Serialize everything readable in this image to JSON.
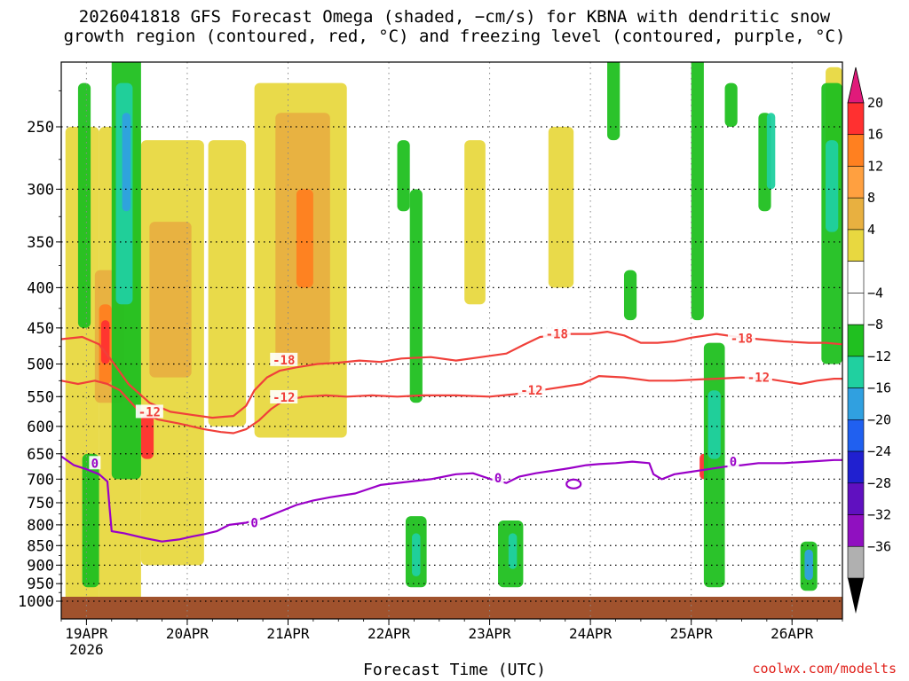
{
  "title_line1": "2026041818 GFS Forecast Omega (shaded, −cm/s) for KBNA with dendritic snow",
  "title_line2": "growth region (contoured, red, °C) and freezing level (contoured, purple, °C)",
  "credit": "coolwx.com/modelts",
  "colors": {
    "isotherm_red": "#f0403a",
    "freezing_purple": "#9a00c8",
    "ground": "#a0522d"
  },
  "chart_data": {
    "type": "heatmap",
    "xlabel": "Forecast Time (UTC)",
    "x_ticks": [
      "19APR",
      "20APR",
      "21APR",
      "22APR",
      "23APR",
      "24APR",
      "25APR",
      "26APR"
    ],
    "x_year_label": "2026",
    "x_range_hours": [
      -6,
      180
    ],
    "y_pressure_levels": [
      "250",
      "300",
      "350",
      "400",
      "450",
      "500",
      "550",
      "600",
      "650",
      "700",
      "750",
      "800",
      "850",
      "900",
      "950",
      "1000"
    ],
    "y_range_hPa": [
      200,
      1000
    ],
    "grid": true,
    "colorbar": {
      "labels": [
        "20",
        "16",
        "12",
        "8",
        "4",
        "−4",
        "−8",
        "−12",
        "−16",
        "−20",
        "−24",
        "−28",
        "−32",
        "−36"
      ],
      "colors": [
        "#ff3030",
        "#ff8020",
        "#ffa040",
        "#e8b040",
        "#e8d840",
        "#ffffff",
        "#ffffff",
        "#20c020",
        "#20d0a0",
        "#30a0e0",
        "#2060f0",
        "#2020d0",
        "#6010c0",
        "#9010c0",
        "#b0b0b0"
      ],
      "top_arrow_color": "#e01a7a",
      "bottom_arrow_color": "#000000"
    },
    "contours": [
      {
        "label": "-18",
        "color": "#f0403a",
        "points": [
          [
            -6,
            465
          ],
          [
            -1,
            462
          ],
          [
            3,
            472
          ],
          [
            6,
            495
          ],
          [
            10,
            530
          ],
          [
            15,
            560
          ],
          [
            20,
            575
          ],
          [
            25,
            580
          ],
          [
            30,
            585
          ],
          [
            35,
            582
          ],
          [
            38,
            565
          ],
          [
            40,
            540
          ],
          [
            43,
            520
          ],
          [
            46,
            510
          ],
          [
            50,
            505
          ],
          [
            55,
            500
          ],
          [
            60,
            498
          ],
          [
            65,
            495
          ],
          [
            70,
            497
          ],
          [
            75,
            492
          ],
          [
            82,
            490
          ],
          [
            88,
            495
          ],
          [
            94,
            490
          ],
          [
            100,
            485
          ],
          [
            104,
            473
          ],
          [
            108,
            462
          ],
          [
            115,
            458
          ],
          [
            120,
            458
          ],
          [
            124,
            455
          ],
          [
            128,
            460
          ],
          [
            132,
            470
          ],
          [
            136,
            470
          ],
          [
            140,
            468
          ],
          [
            144,
            463
          ],
          [
            150,
            458
          ],
          [
            155,
            462
          ],
          [
            160,
            465
          ],
          [
            166,
            468
          ],
          [
            172,
            470
          ],
          [
            176,
            470
          ],
          [
            180,
            472
          ]
        ],
        "label_positions": [
          [
            47,
            494
          ],
          [
            112,
            458
          ],
          [
            156,
            464
          ]
        ]
      },
      {
        "label": "-12",
        "color": "#f0403a",
        "points": [
          [
            -6,
            525
          ],
          [
            -2,
            530
          ],
          [
            2,
            525
          ],
          [
            5,
            530
          ],
          [
            8,
            540
          ],
          [
            12,
            570
          ],
          [
            17,
            588
          ],
          [
            22,
            595
          ],
          [
            28,
            605
          ],
          [
            32,
            610
          ],
          [
            35,
            612
          ],
          [
            38,
            605
          ],
          [
            41,
            590
          ],
          [
            44,
            570
          ],
          [
            47,
            556
          ],
          [
            52,
            550
          ],
          [
            57,
            548
          ],
          [
            62,
            550
          ],
          [
            68,
            548
          ],
          [
            74,
            550
          ],
          [
            80,
            548
          ],
          [
            88,
            548
          ],
          [
            96,
            550
          ],
          [
            102,
            546
          ],
          [
            108,
            540
          ],
          [
            114,
            534
          ],
          [
            118,
            530
          ],
          [
            122,
            518
          ],
          [
            128,
            520
          ],
          [
            134,
            525
          ],
          [
            140,
            525
          ],
          [
            146,
            523
          ],
          [
            150,
            522
          ],
          [
            156,
            520
          ],
          [
            162,
            522
          ],
          [
            170,
            530
          ],
          [
            174,
            525
          ],
          [
            178,
            522
          ],
          [
            180,
            522
          ]
        ],
        "label_positions": [
          [
            15,
            575
          ],
          [
            47,
            551
          ],
          [
            106,
            540
          ],
          [
            160,
            520
          ]
        ]
      },
      {
        "label": "0",
        "color": "#9a00c8",
        "points": [
          [
            -6,
            655
          ],
          [
            -3,
            672
          ],
          [
            0,
            680
          ],
          [
            3,
            690
          ],
          [
            5,
            705
          ],
          [
            5.5,
            760
          ],
          [
            6,
            815
          ],
          [
            9,
            820
          ],
          [
            14,
            832
          ],
          [
            18,
            840
          ],
          [
            22,
            835
          ],
          [
            25,
            828
          ],
          [
            28,
            822
          ],
          [
            31,
            815
          ],
          [
            34,
            800
          ],
          [
            38,
            795
          ],
          [
            42,
            785
          ],
          [
            46,
            770
          ],
          [
            50,
            755
          ],
          [
            54,
            745
          ],
          [
            58,
            738
          ],
          [
            64,
            730
          ],
          [
            70,
            712
          ],
          [
            76,
            706
          ],
          [
            82,
            700
          ],
          [
            88,
            690
          ],
          [
            92,
            688
          ],
          [
            97,
            702
          ],
          [
            100,
            708
          ],
          [
            103,
            695
          ],
          [
            107,
            688
          ],
          [
            111,
            683
          ],
          [
            115,
            678
          ],
          [
            119,
            672
          ],
          [
            122,
            670
          ],
          [
            126,
            668
          ],
          [
            130,
            665
          ],
          [
            134,
            668
          ],
          [
            135,
            690
          ],
          [
            137,
            700
          ],
          [
            140,
            690
          ],
          [
            144,
            685
          ],
          [
            148,
            680
          ],
          [
            152,
            675
          ],
          [
            156,
            672
          ],
          [
            160,
            668
          ],
          [
            166,
            668
          ],
          [
            172,
            665
          ],
          [
            178,
            662
          ],
          [
            180,
            662
          ]
        ],
        "label_positions": [
          [
            2,
            668
          ],
          [
            40,
            795
          ],
          [
            98,
            698
          ],
          [
            154,
            665
          ]
        ]
      }
    ],
    "omega_regions": [
      {
        "t0": -5,
        "t1": 3,
        "p0": 250,
        "p1": 1000,
        "color": "#e8d840"
      },
      {
        "t0": 3,
        "t1": 13,
        "p0": 250,
        "p1": 1000,
        "color": "#e8d840"
      },
      {
        "t0": 13,
        "t1": 28,
        "p0": 260,
        "p1": 900,
        "color": "#e8d840"
      },
      {
        "t0": 29,
        "t1": 38,
        "p0": 260,
        "p1": 600,
        "color": "#e8d840"
      },
      {
        "t0": 40,
        "t1": 62,
        "p0": 220,
        "p1": 620,
        "color": "#e8d840"
      },
      {
        "t0": 90,
        "t1": 95,
        "p0": 260,
        "p1": 420,
        "color": "#e8d840"
      },
      {
        "t0": 110,
        "t1": 116,
        "p0": 250,
        "p1": 400,
        "color": "#e8d840"
      },
      {
        "t0": 176,
        "t1": 180,
        "p0": 210,
        "p1": 300,
        "color": "#e8d840"
      },
      {
        "t0": 2,
        "t1": 9,
        "p0": 380,
        "p1": 560,
        "color": "#e8b040"
      },
      {
        "t0": 15,
        "t1": 25,
        "p0": 330,
        "p1": 520,
        "color": "#e8b040"
      },
      {
        "t0": 45,
        "t1": 58,
        "p0": 240,
        "p1": 500,
        "color": "#e8b040"
      },
      {
        "t0": 3,
        "t1": 6,
        "p0": 420,
        "p1": 530,
        "color": "#ff8020"
      },
      {
        "t0": 50,
        "t1": 54,
        "p0": 300,
        "p1": 400,
        "color": "#ff8020"
      },
      {
        "t0": 3.5,
        "t1": 5.5,
        "p0": 440,
        "p1": 500,
        "color": "#ff3030"
      },
      {
        "t0": 13,
        "t1": 16,
        "p0": 580,
        "p1": 660,
        "color": "#ff3030"
      },
      {
        "t0": 146,
        "t1": 148,
        "p0": 650,
        "p1": 700,
        "color": "#ff3030"
      },
      {
        "t0": -2,
        "t1": 1,
        "p0": 220,
        "p1": 450,
        "color": "#20c020"
      },
      {
        "t0": 6,
        "t1": 13,
        "p0": 200,
        "p1": 700,
        "color": "#20c020"
      },
      {
        "t0": 7,
        "t1": 11,
        "p0": 220,
        "p1": 420,
        "color": "#20d0a0"
      },
      {
        "t0": 8.5,
        "t1": 10.5,
        "p0": 240,
        "p1": 320,
        "color": "#30a0e0"
      },
      {
        "t0": -1,
        "t1": 3,
        "p0": 650,
        "p1": 960,
        "color": "#20c020"
      },
      {
        "t0": 74,
        "t1": 77,
        "p0": 260,
        "p1": 320,
        "color": "#20c020"
      },
      {
        "t0": 77,
        "t1": 80,
        "p0": 300,
        "p1": 560,
        "color": "#20c020"
      },
      {
        "t0": 76,
        "t1": 81,
        "p0": 780,
        "p1": 960,
        "color": "#20c020"
      },
      {
        "t0": 77.5,
        "t1": 79.5,
        "p0": 820,
        "p1": 930,
        "color": "#20d0a0"
      },
      {
        "t0": 98,
        "t1": 104,
        "p0": 790,
        "p1": 960,
        "color": "#20c020"
      },
      {
        "t0": 100.5,
        "t1": 102.5,
        "p0": 820,
        "p1": 910,
        "color": "#20d0a0"
      },
      {
        "t0": 124,
        "t1": 127,
        "p0": 200,
        "p1": 260,
        "color": "#20c020"
      },
      {
        "t0": 128,
        "t1": 131,
        "p0": 380,
        "p1": 440,
        "color": "#20c020"
      },
      {
        "t0": 144,
        "t1": 147,
        "p0": 200,
        "p1": 440,
        "color": "#20c020"
      },
      {
        "t0": 147,
        "t1": 152,
        "p0": 470,
        "p1": 960,
        "color": "#20c020"
      },
      {
        "t0": 148,
        "t1": 151,
        "p0": 540,
        "p1": 660,
        "color": "#20d0a0"
      },
      {
        "t0": 152,
        "t1": 155,
        "p0": 220,
        "p1": 250,
        "color": "#20c020"
      },
      {
        "t0": 160,
        "t1": 163,
        "p0": 240,
        "p1": 320,
        "color": "#20c020"
      },
      {
        "t0": 162,
        "t1": 164,
        "p0": 240,
        "p1": 300,
        "color": "#20d0a0"
      },
      {
        "t0": 170,
        "t1": 174,
        "p0": 840,
        "p1": 970,
        "color": "#20c020"
      },
      {
        "t0": 171,
        "t1": 173,
        "p0": 860,
        "p1": 940,
        "color": "#30a0e0"
      },
      {
        "t0": 175,
        "t1": 180,
        "p0": 220,
        "p1": 500,
        "color": "#20c020"
      },
      {
        "t0": 176,
        "t1": 179,
        "p0": 260,
        "p1": 340,
        "color": "#20d0a0"
      }
    ]
  }
}
